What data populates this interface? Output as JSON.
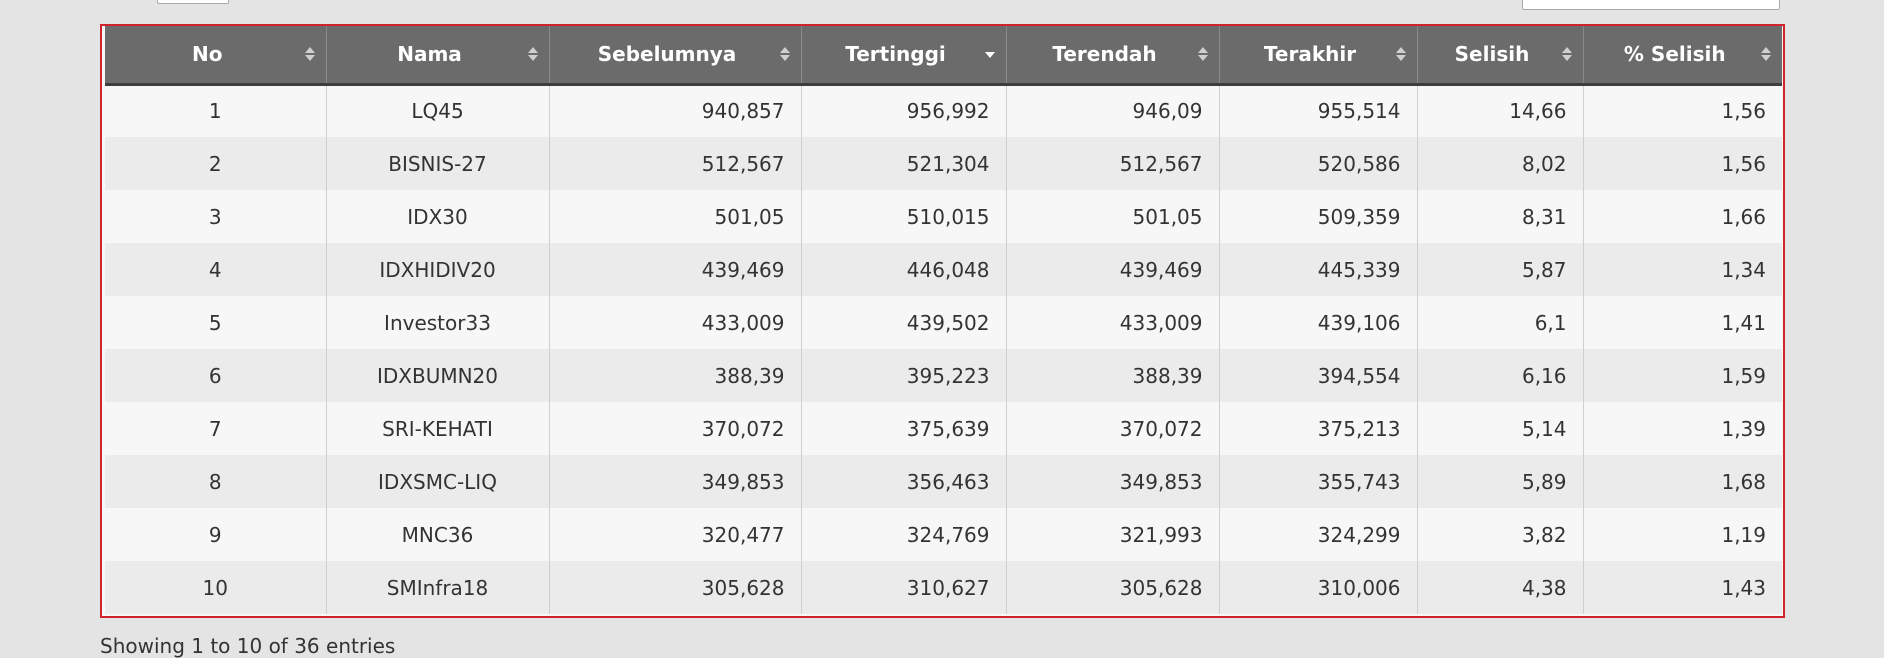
{
  "table": {
    "columns": [
      {
        "label": "No",
        "sort": "both"
      },
      {
        "label": "Nama",
        "sort": "both"
      },
      {
        "label": "Sebelumnya",
        "sort": "both"
      },
      {
        "label": "Tertinggi",
        "sort": "desc"
      },
      {
        "label": "Terendah",
        "sort": "both"
      },
      {
        "label": "Terakhir",
        "sort": "both"
      },
      {
        "label": "Selisih",
        "sort": "both"
      },
      {
        "label": "% Selisih",
        "sort": "both"
      }
    ],
    "rows": [
      [
        "1",
        "LQ45",
        "940,857",
        "956,992",
        "946,09",
        "955,514",
        "14,66",
        "1,56"
      ],
      [
        "2",
        "BISNIS-27",
        "512,567",
        "521,304",
        "512,567",
        "520,586",
        "8,02",
        "1,56"
      ],
      [
        "3",
        "IDX30",
        "501,05",
        "510,015",
        "501,05",
        "509,359",
        "8,31",
        "1,66"
      ],
      [
        "4",
        "IDXHIDIV20",
        "439,469",
        "446,048",
        "439,469",
        "445,339",
        "5,87",
        "1,34"
      ],
      [
        "5",
        "Investor33",
        "433,009",
        "439,502",
        "433,009",
        "439,106",
        "6,1",
        "1,41"
      ],
      [
        "6",
        "IDXBUMN20",
        "388,39",
        "395,223",
        "388,39",
        "394,554",
        "6,16",
        "1,59"
      ],
      [
        "7",
        "SRI-KEHATI",
        "370,072",
        "375,639",
        "370,072",
        "375,213",
        "5,14",
        "1,39"
      ],
      [
        "8",
        "IDXSMC-LIQ",
        "349,853",
        "356,463",
        "349,853",
        "355,743",
        "5,89",
        "1,68"
      ],
      [
        "9",
        "MNC36",
        "320,477",
        "324,769",
        "321,993",
        "324,299",
        "3,82",
        "1,19"
      ],
      [
        "10",
        "SMInfra18",
        "305,628",
        "310,627",
        "305,628",
        "310,006",
        "4,38",
        "1,43"
      ]
    ]
  },
  "footer": {
    "info": "Showing 1 to 10 of 36 entries"
  },
  "colors": {
    "header_bg": "#6b6b6b",
    "frame_border": "#d2232a",
    "row_odd": "#f7f7f7",
    "row_even": "#ebebeb"
  }
}
